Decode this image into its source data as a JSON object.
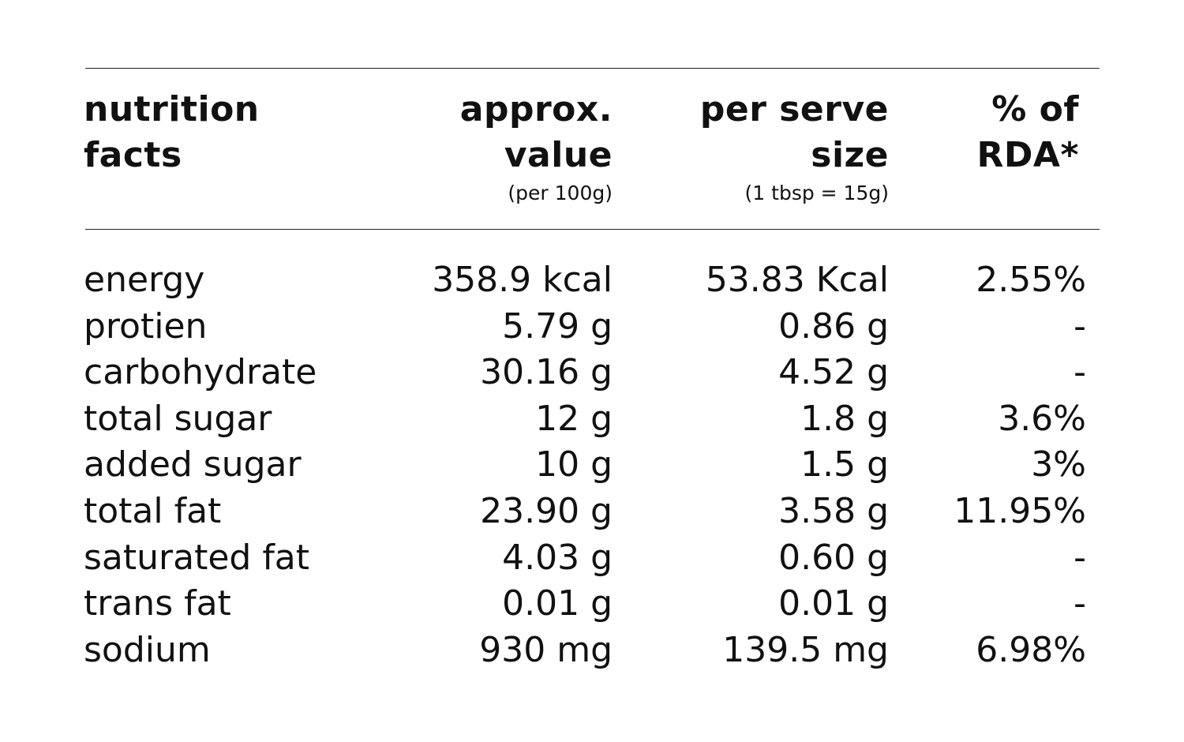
{
  "table": {
    "headers": {
      "nutrition": [
        "nutrition",
        "facts"
      ],
      "value": [
        "approx.",
        "value"
      ],
      "value_sub": "(per 100g)",
      "serve": [
        "per serve",
        "size"
      ],
      "serve_sub": "(1 tbsp = 15g)",
      "rda": [
        "% of",
        "RDA*"
      ]
    },
    "rows": [
      {
        "name": "energy",
        "value": "358.9 kcal",
        "serve": "53.83 Kcal",
        "rda": "2.55%"
      },
      {
        "name": "protien",
        "value": "5.79 g",
        "serve": "0.86 g",
        "rda": "-"
      },
      {
        "name": "carbohydrate",
        "value": "30.16 g",
        "serve": "4.52 g",
        "rda": "-"
      },
      {
        "name": "total sugar",
        "value": "12 g",
        "serve": "1.8 g",
        "rda": "3.6%"
      },
      {
        "name": "added sugar",
        "value": "10 g",
        "serve": "1.5 g",
        "rda": "3%"
      },
      {
        "name": "total fat",
        "value": "23.90 g",
        "serve": "3.58 g",
        "rda": "11.95%"
      },
      {
        "name": "saturated fat",
        "value": "4.03 g",
        "serve": "0.60 g",
        "rda": "-"
      },
      {
        "name": "trans fat",
        "value": "0.01 g",
        "serve": "0.01 g",
        "rda": "-"
      },
      {
        "name": "sodium",
        "value": "930 mg",
        "serve": "139.5 mg",
        "rda": "6.98%"
      }
    ]
  }
}
